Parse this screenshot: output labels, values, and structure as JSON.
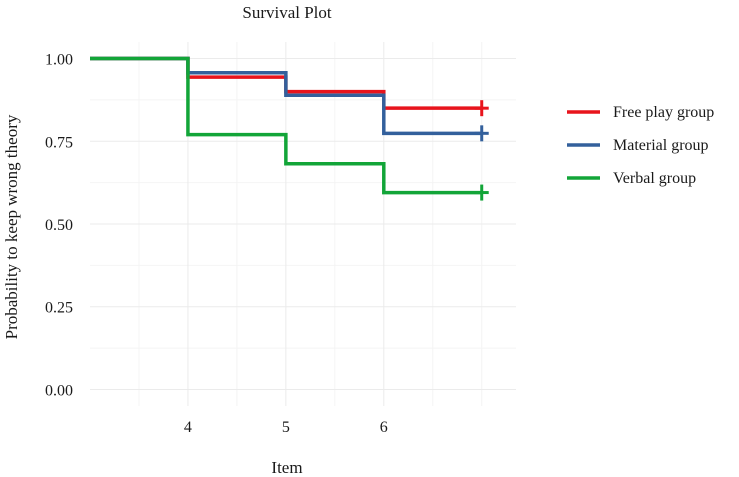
{
  "chart_data": {
    "type": "line",
    "subtype": "step-survival",
    "title": "Survival Plot",
    "xlabel": "Item",
    "ylabel": "Probability to keep wrong theory",
    "xlim": [
      3,
      7.35
    ],
    "ylim": [
      -0.05,
      1.05
    ],
    "x_ticks": [
      4,
      5,
      6
    ],
    "x_tick_labels": [
      "4",
      "5",
      "6"
    ],
    "y_ticks": [
      0,
      0.25,
      0.5,
      0.75,
      1.0
    ],
    "y_tick_labels": [
      "0.00",
      "0.25",
      "0.50",
      "0.75",
      "1.00"
    ],
    "grid": true,
    "legend_position": "right",
    "series": [
      {
        "name": "Free play group",
        "color": "#e8141c",
        "steps": [
          [
            3,
            1.0
          ],
          [
            4,
            0.944
          ],
          [
            5,
            0.9
          ],
          [
            6,
            0.85
          ],
          [
            7,
            0.85
          ]
        ],
        "censor": [
          7,
          0.85
        ]
      },
      {
        "name": "Material group",
        "color": "#33609c",
        "steps": [
          [
            3,
            1.0
          ],
          [
            4,
            0.957
          ],
          [
            5,
            0.889
          ],
          [
            6,
            0.774
          ],
          [
            7,
            0.774
          ]
        ],
        "censor": [
          7,
          0.774
        ]
      },
      {
        "name": "Verbal group",
        "color": "#12a538",
        "steps": [
          [
            3,
            1.0
          ],
          [
            4,
            0.77
          ],
          [
            5,
            0.682
          ],
          [
            6,
            0.595
          ],
          [
            7,
            0.595
          ]
        ],
        "censor": [
          7,
          0.595
        ]
      }
    ]
  }
}
